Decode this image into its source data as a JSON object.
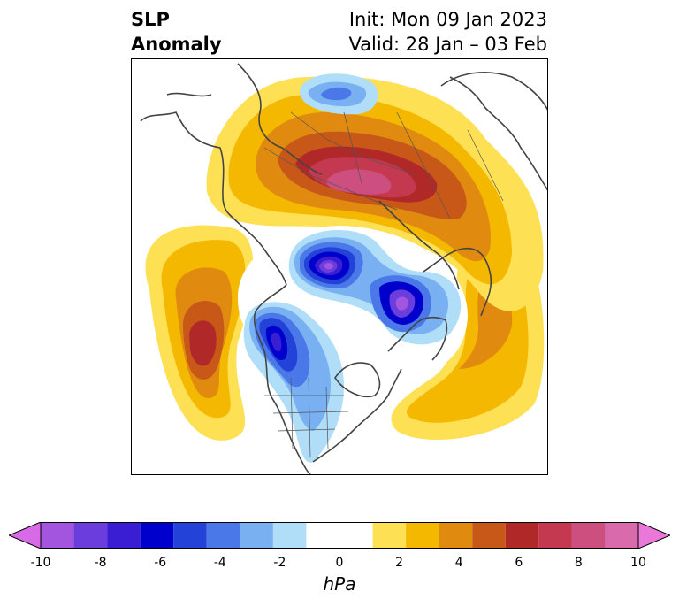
{
  "title": {
    "left_line1": "SLP",
    "left_line2": "Anomaly",
    "right_line1": "Init: Mon 09 Jan 2023",
    "right_line2": "Valid: 28 Jan – 03 Feb"
  },
  "colorbar": {
    "units": "hPa",
    "min": -10,
    "max": 10,
    "step": 1,
    "extend": "both",
    "tick_labels": [
      "-10",
      "-8",
      "-6",
      "-4",
      "-2",
      "0",
      "2",
      "4",
      "6",
      "8",
      "10"
    ],
    "tick_values": [
      -10,
      -8,
      -6,
      -4,
      -2,
      0,
      2,
      4,
      6,
      8,
      10
    ],
    "bin_edges": [
      -9,
      -8,
      -7,
      -6,
      -5,
      -4,
      -3,
      -2,
      -1,
      1,
      2,
      3,
      4,
      5,
      6,
      7,
      8,
      9
    ],
    "colors": [
      "#d86ae8",
      "#a455e0",
      "#6a3ddc",
      "#3a1ed4",
      "#0000cc",
      "#2242d8",
      "#4a78e8",
      "#78b0f2",
      "#b0def8",
      "#ffffff",
      "#fee055",
      "#f4b800",
      "#e08a10",
      "#c85818",
      "#b02828",
      "#c43850",
      "#cc4f80",
      "#d96aac",
      "#ea78d8"
    ]
  },
  "map": {
    "projection": "north-polar-stereographic",
    "variable": "sea level pressure anomaly",
    "features": [
      {
        "name": "eurasia-high",
        "sign": "positive",
        "peak": 8
      },
      {
        "name": "north-pacific-high",
        "sign": "positive",
        "peak": 7
      },
      {
        "name": "north-atlantic-high",
        "sign": "positive",
        "peak": 4
      },
      {
        "name": "arctic-low",
        "sign": "negative",
        "peak": -9
      },
      {
        "name": "alaska-low",
        "sign": "negative",
        "peak": -7
      },
      {
        "name": "north-america-trough",
        "sign": "negative",
        "peak": -2
      }
    ]
  }
}
